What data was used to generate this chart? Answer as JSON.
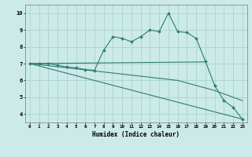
{
  "xlabel": "Humidex (Indice chaleur)",
  "ylabel": "",
  "xlim": [
    -0.5,
    23.5
  ],
  "ylim": [
    3.5,
    10.5
  ],
  "xticks": [
    0,
    1,
    2,
    3,
    4,
    5,
    6,
    7,
    8,
    9,
    10,
    11,
    12,
    13,
    14,
    15,
    16,
    17,
    18,
    19,
    20,
    21,
    22,
    23
  ],
  "yticks": [
    4,
    5,
    6,
    7,
    8,
    9,
    10
  ],
  "bg_color": "#cceae8",
  "grid_color": "#aad4d0",
  "line_color": "#2e7d72",
  "series": {
    "peak": {
      "x": [
        0,
        1,
        2,
        3,
        4,
        5,
        6,
        7,
        8,
        9,
        10,
        11,
        12,
        13,
        14,
        15,
        16,
        17,
        18,
        19,
        20,
        21,
        22,
        23
      ],
      "y": [
        7.0,
        7.0,
        7.0,
        6.9,
        6.8,
        6.75,
        6.65,
        6.6,
        7.8,
        8.6,
        8.5,
        8.3,
        8.6,
        9.0,
        8.9,
        10.0,
        8.9,
        8.85,
        8.5,
        7.15,
        5.7,
        4.8,
        4.4,
        3.7
      ]
    },
    "flat": {
      "x": [
        0,
        19
      ],
      "y": [
        7.0,
        7.1
      ]
    },
    "decline1": {
      "x": [
        0,
        23
      ],
      "y": [
        7.0,
        3.7
      ]
    },
    "decline2": {
      "x": [
        0,
        4,
        8,
        12,
        16,
        20,
        23
      ],
      "y": [
        7.0,
        6.75,
        6.5,
        6.25,
        6.0,
        5.4,
        4.8
      ]
    }
  }
}
